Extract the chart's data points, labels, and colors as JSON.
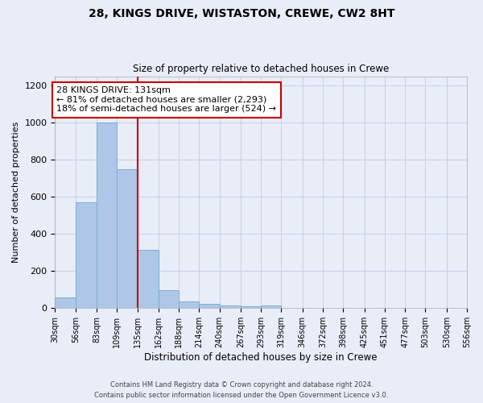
{
  "title1": "28, KINGS DRIVE, WISTASTON, CREWE, CW2 8HT",
  "title2": "Size of property relative to detached houses in Crewe",
  "xlabel": "Distribution of detached houses by size in Crewe",
  "ylabel": "Number of detached properties",
  "footer1": "Contains HM Land Registry data © Crown copyright and database right 2024.",
  "footer2": "Contains public sector information licensed under the Open Government Licence v3.0.",
  "bar_color": "#aec6e8",
  "bar_edge_color": "#7aafd4",
  "grid_color": "#c8d4e8",
  "annotation_text": "28 KINGS DRIVE: 131sqm\n← 81% of detached houses are smaller (2,293)\n18% of semi-detached houses are larger (524) →",
  "annotation_box_color": "#ffffff",
  "annotation_box_edge": "#cc0000",
  "vline_x": 135,
  "vline_color": "#cc0000",
  "bin_edges": [
    30,
    56,
    83,
    109,
    135,
    162,
    188,
    214,
    240,
    267,
    293,
    319,
    346,
    372,
    398,
    425,
    451,
    477,
    503,
    530,
    556
  ],
  "bar_heights": [
    60,
    570,
    1000,
    750,
    315,
    95,
    38,
    25,
    15,
    12,
    15,
    0,
    0,
    0,
    0,
    0,
    0,
    0,
    0,
    0
  ],
  "ylim": [
    0,
    1250
  ],
  "yticks": [
    0,
    200,
    400,
    600,
    800,
    1000,
    1200
  ],
  "background_color": "#e8edf8"
}
